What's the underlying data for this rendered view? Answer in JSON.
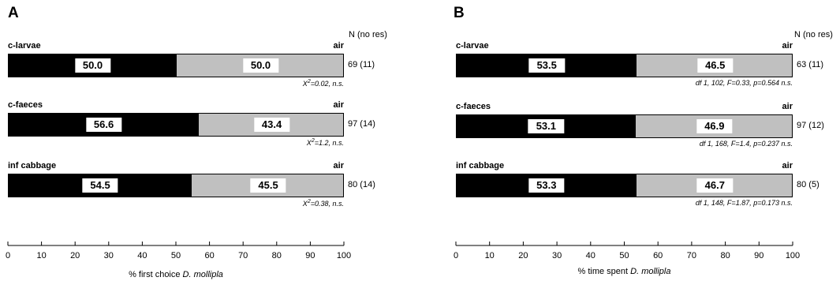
{
  "panels": [
    {
      "id": "a",
      "letter": "A",
      "n_header": "N (no res)",
      "right_label": "air",
      "xlabel_prefix": "% first choice ",
      "xlabel_species": "D. mollipla",
      "rows": [
        {
          "category": "c-larvae",
          "left": "50.0",
          "right": "50.0",
          "n": "69 (11)",
          "stat_prefix": "X",
          "stat_sup": "2",
          "stat_rest": "=0.02, n.s."
        },
        {
          "category": "c-faeces",
          "left": "56.6",
          "right": "43.4",
          "n": "97 (14)",
          "stat_prefix": "X",
          "stat_sup": "2",
          "stat_rest": "=1.2, n.s."
        },
        {
          "category": "inf cabbage",
          "left": "54.5",
          "right": "45.5",
          "n": "80 (14)",
          "stat_prefix": "X",
          "stat_sup": "2",
          "stat_rest": "=0.38, n.s."
        }
      ]
    },
    {
      "id": "b",
      "letter": "B",
      "n_header": "N (no res)",
      "right_label": "air",
      "xlabel_prefix": "% time spent ",
      "xlabel_species": "D. mollipla",
      "rows": [
        {
          "category": "c-larvae",
          "left": "53.5",
          "right": "46.5",
          "n": "63 (11)",
          "stat_prefix": "",
          "stat_sup": "",
          "stat_rest": "df 1, 102, F=0.33, p=0.564 n.s."
        },
        {
          "category": "c-faeces",
          "left": "53.1",
          "right": "46.9",
          "n": "97 (12)",
          "stat_prefix": "",
          "stat_sup": "",
          "stat_rest": "df 1, 168, F=1.4, p=0.237 n.s."
        },
        {
          "category": "inf cabbage",
          "left": "53.3",
          "right": "46.7",
          "n": "80 (5)",
          "stat_prefix": "",
          "stat_sup": "",
          "stat_rest": "df 1, 148, F=1.87, p=0.173 n.s."
        }
      ]
    }
  ],
  "colors": {
    "left_segment": "#000000",
    "right_segment": "#c0c0c0"
  },
  "chart_data": [
    {
      "type": "bar",
      "orientation": "horizontal",
      "stacked": true,
      "title": "A",
      "categories": [
        "c-larvae",
        "c-faeces",
        "inf cabbage"
      ],
      "series": [
        {
          "values": [
            50.0,
            56.6,
            54.5
          ]
        },
        {
          "name": "air",
          "values": [
            50.0,
            43.4,
            45.5
          ]
        }
      ],
      "xlabel": "% first choice D. mollipla",
      "xlim": [
        0,
        100
      ],
      "xticks": [
        0,
        10,
        20,
        30,
        40,
        50,
        60,
        70,
        80,
        90,
        100
      ],
      "n": [
        "69 (11)",
        "97 (14)",
        "80 (14)"
      ],
      "grid": false
    },
    {
      "type": "bar",
      "orientation": "horizontal",
      "stacked": true,
      "title": "B",
      "categories": [
        "c-larvae",
        "c-faeces",
        "inf cabbage"
      ],
      "series": [
        {
          "values": [
            53.5,
            53.1,
            53.3
          ]
        },
        {
          "name": "air",
          "values": [
            46.5,
            46.9,
            46.7
          ]
        }
      ],
      "xlabel": "% time spent D. mollipla",
      "xlim": [
        0,
        100
      ],
      "xticks": [
        0,
        10,
        20,
        30,
        40,
        50,
        60,
        70,
        80,
        90,
        100
      ],
      "n": [
        "63 (11)",
        "97 (12)",
        "80 (5)"
      ],
      "grid": false
    }
  ]
}
